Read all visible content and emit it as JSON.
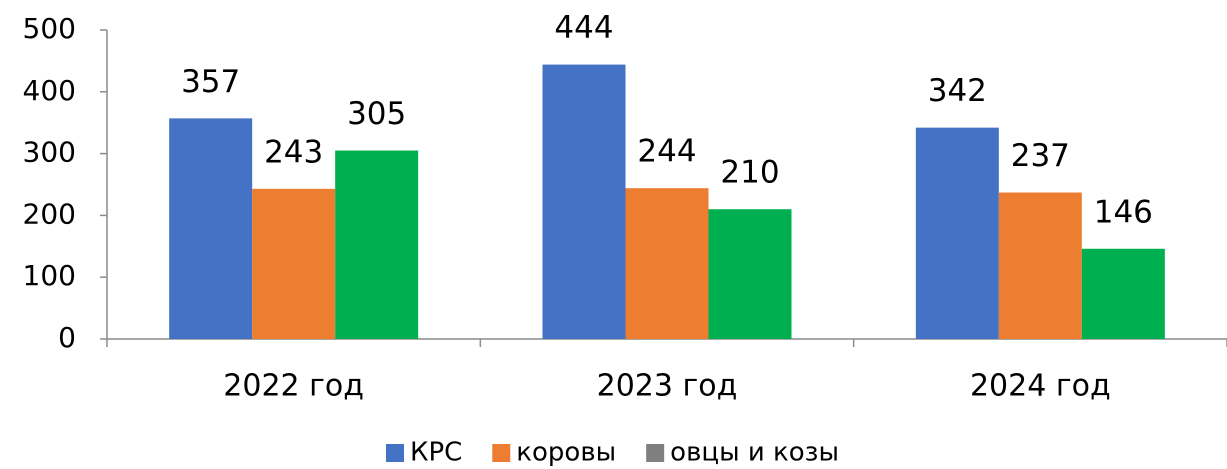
{
  "chart_data": {
    "type": "bar",
    "categories": [
      "2022 год",
      "2023 год",
      "2024 год"
    ],
    "series": [
      {
        "name": "КРС",
        "color": "#4472c4",
        "values": [
          357,
          444,
          342
        ]
      },
      {
        "name": "коровы",
        "color": "#ed7d31",
        "values": [
          243,
          244,
          237
        ]
      },
      {
        "name": "овцы и козы",
        "color": "#00b050",
        "legend_color": "#7f7f7f",
        "values": [
          305,
          210,
          146
        ]
      }
    ],
    "ylim": [
      0,
      500
    ],
    "yticks": [
      0,
      100,
      200,
      300,
      400,
      500
    ],
    "grid": false,
    "legend": "bottom"
  }
}
